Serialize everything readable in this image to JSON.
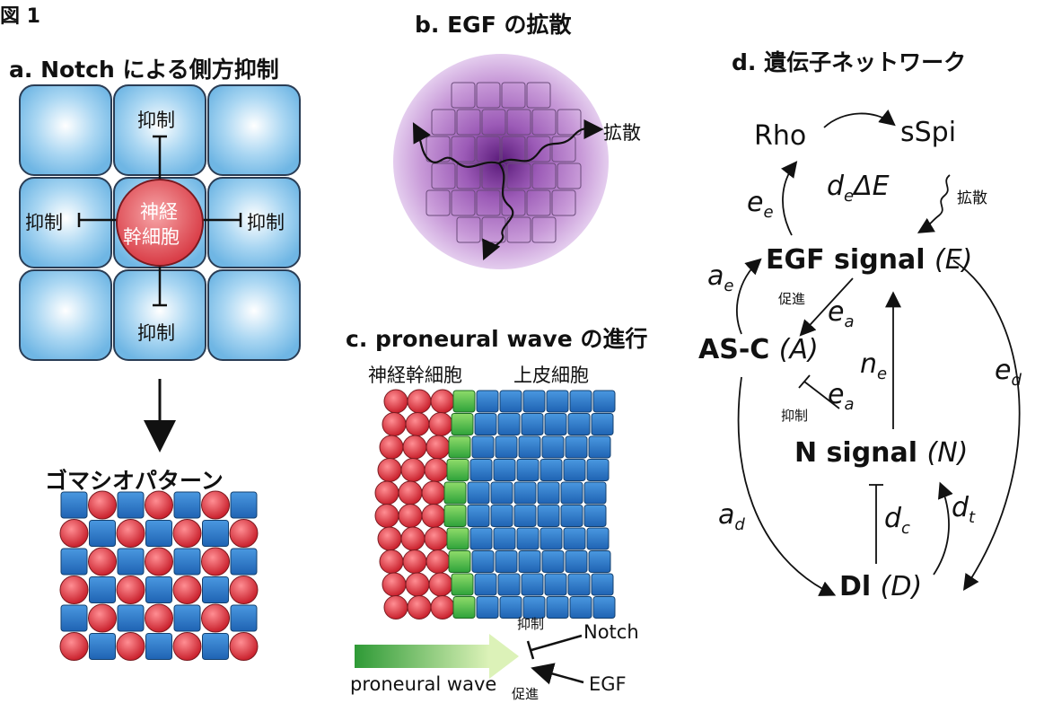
{
  "figure": {
    "label": "図 1"
  },
  "panel_a": {
    "title": "a. Notch による側方抑制",
    "center_line1": "神経",
    "center_line2": "幹細胞",
    "inhibit_top": "抑制",
    "inhibit_left": "抑制",
    "inhibit_right": "抑制",
    "inhibit_bottom": "抑制",
    "pattern_title": "ゴマシオパターン",
    "colors": {
      "cell": "#7fc1e8",
      "stem": "#e0464f",
      "blue_cell": "#2f79c9"
    }
  },
  "panel_b": {
    "title": "b. EGF の拡散",
    "diffusion_label": "拡散",
    "colors": {
      "halo": "#b07cc6",
      "core": "#5a1a7a"
    }
  },
  "panel_c": {
    "title": "c. proneural wave の進行",
    "stem_label": "神経幹細胞",
    "epi_label": "上皮細胞",
    "inhibit_label": "抑制",
    "promote_label": "促進",
    "notch_label": "Notch",
    "egf_label": "EGF",
    "wave_label": "proneural wave",
    "colors": {
      "wave_front": "#3fb440",
      "epi": "#2f79c9",
      "stem": "#e0464f"
    }
  },
  "panel_d": {
    "title": "d. 遺伝子ネットワーク",
    "rho": "Rho",
    "sspi": "sSpi",
    "diffusion_term": "d",
    "diffusion_sub": "e",
    "diffusion_tail": "ΔE",
    "diffusion_label": "拡散",
    "ee": "e",
    "ee_sub": "e",
    "egf_signal": "EGF signal",
    "egf_var": "(E)",
    "ae": "a",
    "ae_sub": "e",
    "promote_label": "促進",
    "ea1": "e",
    "ea1_sub": "a",
    "asc": "AS-C",
    "asc_var": "(A)",
    "ne": "n",
    "ne_sub": "e",
    "ed": "e",
    "ed_sub": "d",
    "inhibit_label": "抑制",
    "ea2": "e",
    "ea2_sub": "a",
    "n_signal": "N signal",
    "n_var": "(N)",
    "ad": "a",
    "ad_sub": "d",
    "dc": "d",
    "dc_sub": "c",
    "dt": "d",
    "dt_sub": "t",
    "dl": "Dl",
    "dl_var": "(D)"
  }
}
